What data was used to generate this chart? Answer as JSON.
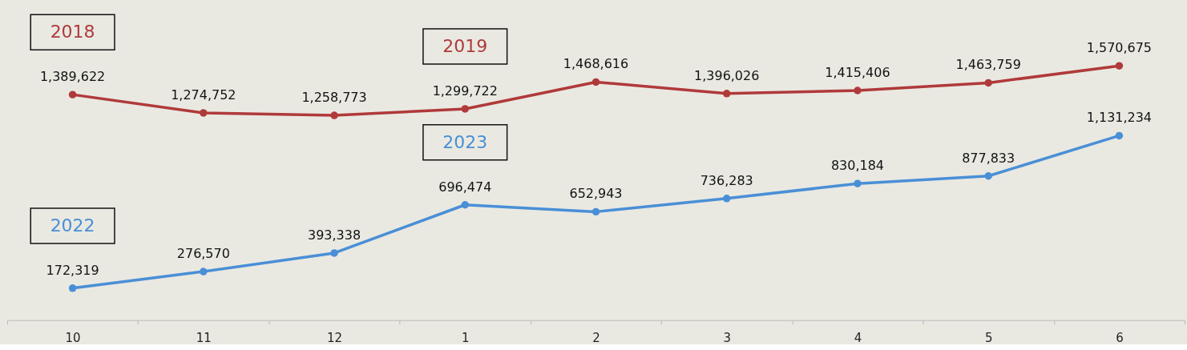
{
  "chart_data": {
    "type": "line",
    "categories": [
      "10",
      "11",
      "12",
      "1",
      "2",
      "3",
      "4",
      "5",
      "6"
    ],
    "series": [
      {
        "color": "#b03a3a",
        "values": [
          1389622,
          1274752,
          1258773,
          1299722,
          1468616,
          1396026,
          1415406,
          1463759,
          1570675
        ],
        "value_labels": [
          "1,389,622",
          "1,274,752",
          "1,258,773",
          "1,299,722",
          "1,468,616",
          "1,396,026",
          "1,415,406",
          "1,463,759",
          "1,570,675"
        ]
      },
      {
        "color": "#4a8fd6",
        "values": [
          172319,
          276570,
          393338,
          696474,
          652943,
          736283,
          830184,
          877833,
          1131234
        ],
        "value_labels": [
          "172,319",
          "276,570",
          "393,338",
          "696,474",
          "652,943",
          "736,283",
          "830,184",
          "877,833",
          "1,131,234"
        ]
      }
    ],
    "annotations": [
      "2018",
      "2019",
      "2022",
      "2023"
    ],
    "tick_labels": "x",
    "marker": "circle",
    "line_style": "solid",
    "grid": false
  }
}
